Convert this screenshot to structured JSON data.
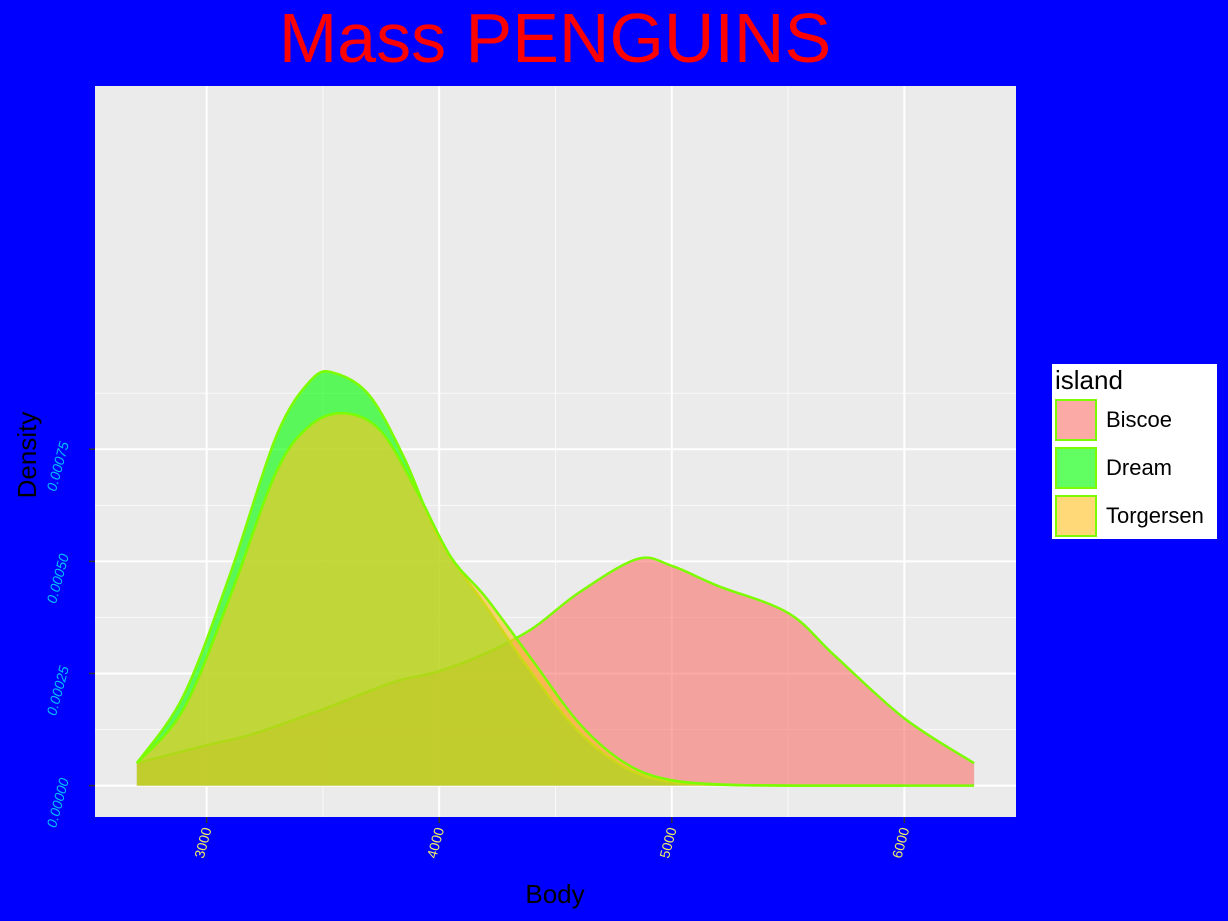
{
  "colors": {
    "background": "#0000FF",
    "panel": "#EBEBEB",
    "grid": "#FFFFFF",
    "title": "#FF0000",
    "x_tick": "#EEEE66",
    "y_tick": "#00BFFF",
    "outline": "#7CFC00"
  },
  "chart_data": {
    "type": "area",
    "title": "Mass PENGUINS",
    "xlabel": "Body",
    "ylabel": "Density",
    "xlim": [
      2520,
      6480
    ],
    "ylim": [
      -7e-05,
      0.00156
    ],
    "x_ticks": [
      3000,
      4000,
      5000,
      6000
    ],
    "x_tick_labels": [
      "3000",
      "4000",
      "5000",
      "6000"
    ],
    "y_ticks": [
      0,
      0.00025,
      0.0005,
      0.00075
    ],
    "y_tick_labels": [
      "0.00000",
      "0.00025",
      "0.00050",
      "0.00075"
    ],
    "grid": true,
    "legend": {
      "title": "island",
      "position": "right"
    },
    "series": [
      {
        "name": "Biscoe",
        "color": "#F8766D",
        "x": [
          2700,
          3000,
          3200,
          3500,
          3800,
          4000,
          4200,
          4400,
          4600,
          4850,
          5000,
          5200,
          5500,
          5700,
          6000,
          6300
        ],
        "y": [
          5e-05,
          9e-05,
          0.000115,
          0.00017,
          0.00023,
          0.000255,
          0.000295,
          0.00035,
          0.00043,
          0.000505,
          0.00049,
          0.000445,
          0.000385,
          0.00029,
          0.00015,
          5e-05
        ]
      },
      {
        "name": "Dream",
        "color": "#00FF00",
        "x": [
          2700,
          2900,
          3100,
          3300,
          3450,
          3550,
          3700,
          3850,
          4000,
          4200,
          4400,
          4600,
          4800,
          5000,
          5300,
          5600,
          6000,
          6300
        ],
        "y": [
          5e-05,
          0.0002,
          0.00047,
          0.00078,
          0.000905,
          0.00092,
          0.00087,
          0.00073,
          0.00055,
          0.0004,
          0.00025,
          0.00012,
          4e-05,
          8e-06,
          1e-06,
          0,
          0,
          0
        ]
      },
      {
        "name": "Torgersen",
        "color": "#FFC125",
        "x": [
          2700,
          2900,
          3100,
          3300,
          3450,
          3600,
          3750,
          3900,
          4050,
          4200,
          4400,
          4600,
          4800,
          5000,
          5300,
          5600,
          6000
        ],
        "y": [
          5e-05,
          0.00017,
          0.00042,
          0.0007,
          0.000805,
          0.00083,
          0.00079,
          0.00066,
          0.00051,
          0.00042,
          0.00028,
          0.00014,
          5e-05,
          1.2e-05,
          1e-06,
          0,
          0
        ]
      }
    ]
  }
}
